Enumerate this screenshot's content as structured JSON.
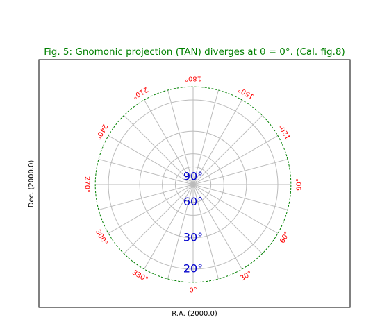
{
  "chart_data": {
    "type": "polar-graticule",
    "title": "Fig. 5: Gnomonic projection (TAN) diverges at θ = 0°. (Cal. fig.8)",
    "xlabel": "R.A. (2000.0)",
    "ylabel": "Dec. (2000.0)",
    "projection": "TAN",
    "ra_label_color": "#ff0000",
    "dec_label_color": "#0000cc",
    "grid_color": "#bbbbbb",
    "boundary_color": "#008000",
    "boundary_style": "dashed",
    "ra_meridians_deg": [
      0,
      15,
      30,
      45,
      60,
      75,
      90,
      105,
      120,
      135,
      150,
      165,
      180,
      195,
      210,
      225,
      240,
      255,
      270,
      285,
      300,
      315,
      330,
      345
    ],
    "ra_labels": [
      {
        "value": 0,
        "text": "0°"
      },
      {
        "value": 30,
        "text": "30°"
      },
      {
        "value": 60,
        "text": "60°"
      },
      {
        "value": 90,
        "text": "90°"
      },
      {
        "value": 120,
        "text": "120°"
      },
      {
        "value": 150,
        "text": "150°"
      },
      {
        "value": 180,
        "text": "180°"
      },
      {
        "value": 210,
        "text": "210°"
      },
      {
        "value": 240,
        "text": "240°"
      },
      {
        "value": 270,
        "text": "270°"
      },
      {
        "value": 300,
        "text": "300°"
      },
      {
        "value": 330,
        "text": "330°"
      }
    ],
    "dec_parallels_deg": [
      20,
      30,
      45,
      60
    ],
    "dec_labels": [
      {
        "value": 90,
        "text": "90°"
      },
      {
        "value": 60,
        "text": "60°"
      },
      {
        "value": 30,
        "text": "30°"
      },
      {
        "value": 20,
        "text": "20°"
      }
    ],
    "boundary_dec_deg": 17.5
  }
}
